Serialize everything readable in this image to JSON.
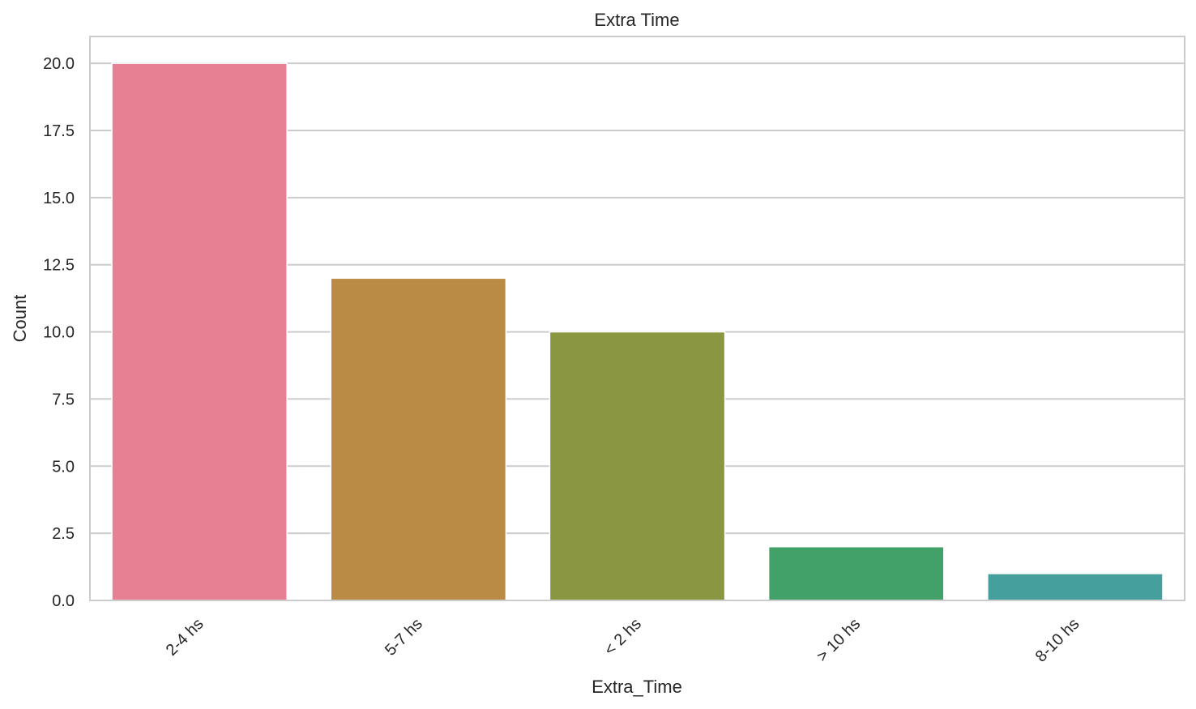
{
  "chart_data": {
    "type": "bar",
    "title": "Extra Time",
    "xlabel": "Extra_Time",
    "ylabel": "Count",
    "categories": [
      "2-4 hs",
      "5-7 hs",
      "< 2 hs",
      "> 10 hs",
      "8-10 hs"
    ],
    "values": [
      20,
      12,
      10,
      2,
      1
    ],
    "colors": [
      "#e88093",
      "#b98b45",
      "#8b9641",
      "#42a169",
      "#459f9c"
    ],
    "ylim": [
      0,
      21
    ],
    "yticks": [
      0.0,
      2.5,
      5.0,
      7.5,
      10.0,
      12.5,
      15.0,
      17.5,
      20.0
    ],
    "ytick_labels": [
      "0.0",
      "2.5",
      "5.0",
      "7.5",
      "10.0",
      "12.5",
      "15.0",
      "17.5",
      "20.0"
    ],
    "grid": true,
    "grid_axis": "y",
    "xtick_rotation": -45
  }
}
